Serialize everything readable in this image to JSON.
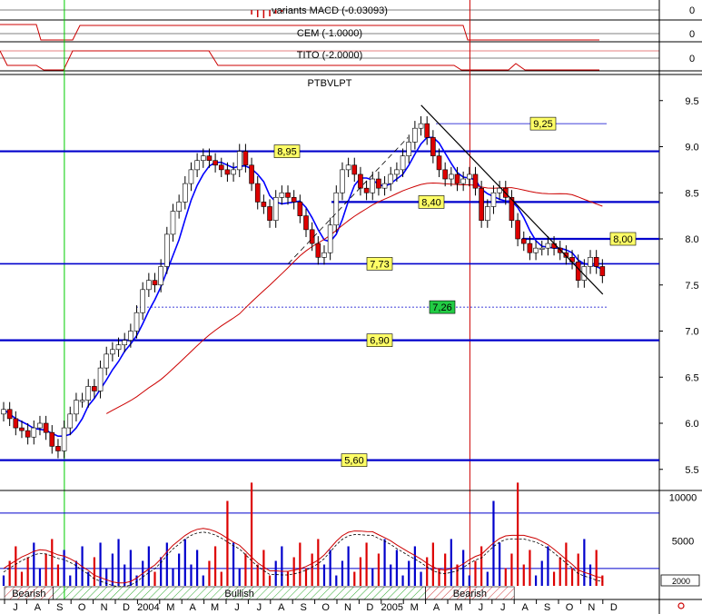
{
  "chart_data": {
    "type": "candlestick",
    "title": "PTBVLPT",
    "price_axis": {
      "ylim": [
        5.5,
        9.75
      ],
      "ticks": [
        "9.5",
        "9.0",
        "8.5",
        "8.0",
        "7.5",
        "7.0",
        "6.5",
        "6.0",
        "5.5"
      ]
    },
    "volume_axis": {
      "ticks": [
        "10000",
        "5000"
      ]
    },
    "indicators": [
      {
        "name": "variants MACD (-0.03093)",
        "axis_label": "0"
      },
      {
        "name": "CEM (-1.0000)",
        "axis_label": "0"
      },
      {
        "name": "TITO (-2.0000)",
        "axis_label": "0"
      }
    ],
    "months": [
      "J",
      "A",
      "S",
      "O",
      "N",
      "D",
      "2004",
      "M",
      "A",
      "M",
      "J",
      "J",
      "A",
      "S",
      "O",
      "N",
      "D",
      "2005",
      "M",
      "A",
      "M",
      "J",
      "J",
      "A",
      "S",
      "O",
      "N",
      "D"
    ],
    "horizontal_levels": [
      {
        "value": 8.95,
        "label": "8,95",
        "style": "thick"
      },
      {
        "value": 8.4,
        "label": "8,40",
        "style": "thick"
      },
      {
        "value": 8.0,
        "label": "8,00",
        "style": "thick"
      },
      {
        "value": 7.73,
        "label": "7,73",
        "style": "medium"
      },
      {
        "value": 6.9,
        "label": "6,90",
        "style": "thick"
      },
      {
        "value": 5.6,
        "label": "5,60",
        "style": "thick"
      },
      {
        "value": 9.25,
        "label": "9,25",
        "style": "thin"
      },
      {
        "value": 7.26,
        "label": "7,26",
        "style": "dashed"
      }
    ],
    "signal_bands": [
      {
        "label": "Bearish",
        "from_month": 0,
        "to_month": 2.2
      },
      {
        "label": "Bullish",
        "from_month": 2.2,
        "to_month": 19.0
      },
      {
        "label": "Bearish",
        "from_month": 19.0,
        "to_month": 23.0
      }
    ],
    "volume_box_label": "2000",
    "closes": [
      6.15,
      6.05,
      5.95,
      5.92,
      5.85,
      5.95,
      6.0,
      5.9,
      5.75,
      5.7,
      5.95,
      6.1,
      6.25,
      6.25,
      6.4,
      6.35,
      6.6,
      6.75,
      6.8,
      6.85,
      6.9,
      7.0,
      7.2,
      7.45,
      7.55,
      7.5,
      7.7,
      8.05,
      8.3,
      8.4,
      8.6,
      8.75,
      8.85,
      8.9,
      8.85,
      8.8,
      8.75,
      8.7,
      8.75,
      8.95,
      8.8,
      8.6,
      8.4,
      8.35,
      8.2,
      8.45,
      8.5,
      8.45,
      8.4,
      8.25,
      8.1,
      7.95,
      7.8,
      7.85,
      8.15,
      8.5,
      8.75,
      8.8,
      8.7,
      8.55,
      8.5,
      8.65,
      8.55,
      8.6,
      8.7,
      8.75,
      8.9,
      9.05,
      9.2,
      9.25,
      9.1,
      8.9,
      8.75,
      8.65,
      8.7,
      8.6,
      8.65,
      8.7,
      8.55,
      8.2,
      8.35,
      8.5,
      8.55,
      8.45,
      8.2,
      8.0,
      7.95,
      7.85,
      7.9,
      7.9,
      7.95,
      7.9,
      7.85,
      7.8,
      7.75,
      7.55,
      7.7,
      7.8,
      7.7,
      7.6
    ],
    "series": [
      {
        "name": "moving average (short)",
        "color": "#0000ff"
      },
      {
        "name": "moving average (long)",
        "color": "#cc0000"
      }
    ],
    "trendlines": [
      {
        "name": "resistance-trendline",
        "from": {
          "month": 18.8,
          "price": 9.45
        },
        "to": {
          "month": 27.0,
          "price": 7.4
        },
        "color": "#000000"
      },
      {
        "name": "support-trendline",
        "from": {
          "month": 12.8,
          "price": 7.73
        },
        "to": {
          "month": 18.2,
          "price": 9.1
        },
        "color": "#000000",
        "dashed": true
      }
    ],
    "vertical_markers": [
      {
        "month": 2.7,
        "color": "#00cc00"
      },
      {
        "month": 21.0,
        "color": "#cc0000"
      }
    ],
    "colors": {
      "level": "#0000cc",
      "up": "#ffffff",
      "down": "#dd0000",
      "ma_short": "#0000ff",
      "ma_long": "#cc0000"
    }
  }
}
